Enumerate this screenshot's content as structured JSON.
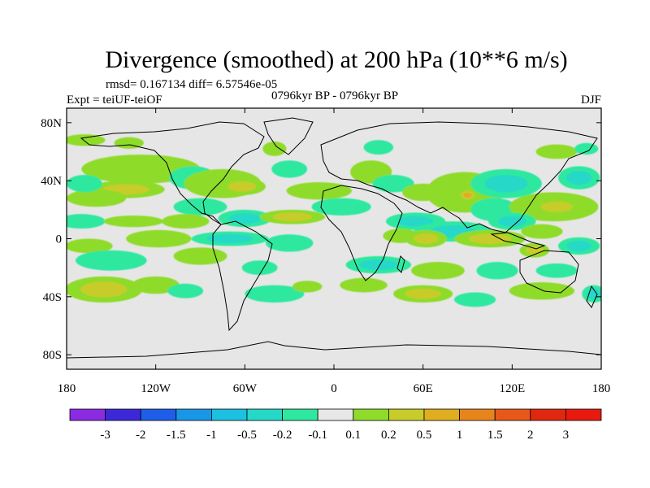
{
  "chart_data": {
    "type": "heatmap",
    "title": "Divergence (smoothed) at 200 hPa (10**6 m/s)",
    "stats": "rmsd= 0.167134  diff= 6.57546e-05",
    "experiment": "Expt = teiUF-teiOF",
    "period": "0796kyr BP - 0796kyr BP",
    "season": "DJF",
    "x_ticks": [
      "180",
      "120W",
      "60W",
      "0",
      "60E",
      "120E",
      "180"
    ],
    "x_tick_values": [
      -180,
      -120,
      -60,
      0,
      60,
      120,
      180
    ],
    "y_ticks": [
      "80N",
      "40N",
      "0",
      "40S",
      "80S"
    ],
    "y_tick_values": [
      80,
      40,
      0,
      -40,
      -80
    ],
    "xlim": [
      -180,
      180
    ],
    "ylim": [
      -90,
      90
    ],
    "colorbar": {
      "labels": [
        "-3",
        "-2",
        "-1.5",
        "-1",
        "-0.5",
        "-0.2",
        "-0.1",
        "0.1",
        "0.2",
        "0.5",
        "1",
        "1.5",
        "2",
        "3"
      ],
      "colors": [
        "#8a2be2",
        "#3c28d8",
        "#1e5ee8",
        "#1a96e6",
        "#1cc0e0",
        "#25d8c8",
        "#2ee8a0",
        "#e8e8e8",
        "#8fdb2a",
        "#c8cc2a",
        "#e0ac20",
        "#e8841c",
        "#e85818",
        "#e02810",
        "#e81a10"
      ]
    },
    "blobs": [
      {
        "lon": -168,
        "lat": 68,
        "rx": 14,
        "ry": 4,
        "v": 0.2
      },
      {
        "lon": -138,
        "lat": 66,
        "rx": 10,
        "ry": 4,
        "v": 0.2
      },
      {
        "lon": -40,
        "lat": 62,
        "rx": 8,
        "ry": 5,
        "v": 0.2
      },
      {
        "lon": 30,
        "lat": 63,
        "rx": 10,
        "ry": 5,
        "v": -0.2
      },
      {
        "lon": 150,
        "lat": 60,
        "rx": 14,
        "ry": 5,
        "v": 0.2
      },
      {
        "lon": 170,
        "lat": 62,
        "rx": 8,
        "ry": 4,
        "v": -0.2
      },
      {
        "lon": -130,
        "lat": 48,
        "rx": 40,
        "ry": 10,
        "v": 0.2
      },
      {
        "lon": -140,
        "lat": 34,
        "rx": 26,
        "ry": 6,
        "v": 0.5
      },
      {
        "lon": -160,
        "lat": 28,
        "rx": 20,
        "ry": 6,
        "v": 0.2
      },
      {
        "lon": -168,
        "lat": 38,
        "rx": 12,
        "ry": 6,
        "v": -0.2
      },
      {
        "lon": -95,
        "lat": 42,
        "rx": 16,
        "ry": 8,
        "v": -0.2
      },
      {
        "lon": -75,
        "lat": 38,
        "rx": 26,
        "ry": 10,
        "v": 0.2
      },
      {
        "lon": -62,
        "lat": 36,
        "rx": 16,
        "ry": 6,
        "v": 0.5
      },
      {
        "lon": -30,
        "lat": 48,
        "rx": 12,
        "ry": 6,
        "v": -0.2
      },
      {
        "lon": -10,
        "lat": 33,
        "rx": 22,
        "ry": 6,
        "v": 0.2
      },
      {
        "lon": 25,
        "lat": 46,
        "rx": 14,
        "ry": 8,
        "v": 0.2
      },
      {
        "lon": 40,
        "lat": 38,
        "rx": 14,
        "ry": 6,
        "v": -0.2
      },
      {
        "lon": 60,
        "lat": 32,
        "rx": 14,
        "ry": 6,
        "v": 0.2
      },
      {
        "lon": 88,
        "lat": 32,
        "rx": 26,
        "ry": 14,
        "v": 0.2
      },
      {
        "lon": 90,
        "lat": 30,
        "rx": 8,
        "ry": 5,
        "v": 1
      },
      {
        "lon": 116,
        "lat": 38,
        "rx": 24,
        "ry": 10,
        "v": -0.5
      },
      {
        "lon": 108,
        "lat": 20,
        "rx": 16,
        "ry": 8,
        "v": -0.2
      },
      {
        "lon": 148,
        "lat": 22,
        "rx": 30,
        "ry": 10,
        "v": 0.2
      },
      {
        "lon": 150,
        "lat": 22,
        "rx": 18,
        "ry": 6,
        "v": 0.5
      },
      {
        "lon": 165,
        "lat": 42,
        "rx": 14,
        "ry": 8,
        "v": -0.5
      },
      {
        "lon": -170,
        "lat": 12,
        "rx": 16,
        "ry": 5,
        "v": -0.2
      },
      {
        "lon": -135,
        "lat": 12,
        "rx": 20,
        "ry": 4,
        "v": 0.2
      },
      {
        "lon": -90,
        "lat": 22,
        "rx": 18,
        "ry": 6,
        "v": -0.2
      },
      {
        "lon": -100,
        "lat": 12,
        "rx": 16,
        "ry": 5,
        "v": 0.2
      },
      {
        "lon": -60,
        "lat": 14,
        "rx": 18,
        "ry": 6,
        "v": -0.5
      },
      {
        "lon": -28,
        "lat": 15,
        "rx": 22,
        "ry": 5,
        "v": 0.5
      },
      {
        "lon": 5,
        "lat": 22,
        "rx": 20,
        "ry": 6,
        "v": -0.2
      },
      {
        "lon": 55,
        "lat": 12,
        "rx": 20,
        "ry": 6,
        "v": -0.5
      },
      {
        "lon": 80,
        "lat": 5,
        "rx": 26,
        "ry": 7,
        "v": -0.5
      },
      {
        "lon": 120,
        "lat": 12,
        "rx": 16,
        "ry": 6,
        "v": -0.5
      },
      {
        "lon": 140,
        "lat": 5,
        "rx": 14,
        "ry": 5,
        "v": 0.2
      },
      {
        "lon": -165,
        "lat": -5,
        "rx": 16,
        "ry": 5,
        "v": 0.2
      },
      {
        "lon": -118,
        "lat": 0,
        "rx": 22,
        "ry": 6,
        "v": 0.2
      },
      {
        "lon": -70,
        "lat": 0,
        "rx": 26,
        "ry": 5,
        "v": -0.5
      },
      {
        "lon": -30,
        "lat": -3,
        "rx": 16,
        "ry": 6,
        "v": -0.2
      },
      {
        "lon": 45,
        "lat": 2,
        "rx": 12,
        "ry": 5,
        "v": 0.2
      },
      {
        "lon": 62,
        "lat": 0,
        "rx": 14,
        "ry": 6,
        "v": 0.5
      },
      {
        "lon": 105,
        "lat": 0,
        "rx": 24,
        "ry": 6,
        "v": 0.5
      },
      {
        "lon": 135,
        "lat": -8,
        "rx": 10,
        "ry": 5,
        "v": 0.5
      },
      {
        "lon": 165,
        "lat": -5,
        "rx": 14,
        "ry": 6,
        "v": -0.5
      },
      {
        "lon": -150,
        "lat": -15,
        "rx": 24,
        "ry": 7,
        "v": -0.2
      },
      {
        "lon": -90,
        "lat": -12,
        "rx": 18,
        "ry": 6,
        "v": 0.2
      },
      {
        "lon": -50,
        "lat": -20,
        "rx": 12,
        "ry": 5,
        "v": -0.2
      },
      {
        "lon": 30,
        "lat": -18,
        "rx": 22,
        "ry": 6,
        "v": -0.5
      },
      {
        "lon": 70,
        "lat": -22,
        "rx": 18,
        "ry": 6,
        "v": 0.2
      },
      {
        "lon": 110,
        "lat": -22,
        "rx": 14,
        "ry": 6,
        "v": -0.2
      },
      {
        "lon": 150,
        "lat": -22,
        "rx": 14,
        "ry": 5,
        "v": -0.2
      },
      {
        "lon": -155,
        "lat": -35,
        "rx": 26,
        "ry": 9,
        "v": 0.5
      },
      {
        "lon": -120,
        "lat": -32,
        "rx": 16,
        "ry": 6,
        "v": 0.2
      },
      {
        "lon": -100,
        "lat": -36,
        "rx": 12,
        "ry": 5,
        "v": -0.2
      },
      {
        "lon": -40,
        "lat": -38,
        "rx": 20,
        "ry": 6,
        "v": -0.2
      },
      {
        "lon": -18,
        "lat": -33,
        "rx": 10,
        "ry": 4,
        "v": 0.2
      },
      {
        "lon": 20,
        "lat": -32,
        "rx": 16,
        "ry": 5,
        "v": 0.2
      },
      {
        "lon": 60,
        "lat": -38,
        "rx": 20,
        "ry": 6,
        "v": 0.5
      },
      {
        "lon": 140,
        "lat": -36,
        "rx": 22,
        "ry": 6,
        "v": 0.2
      },
      {
        "lon": 175,
        "lat": -38,
        "rx": 8,
        "ry": 6,
        "v": -0.5
      },
      {
        "lon": 95,
        "lat": -42,
        "rx": 14,
        "ry": 5,
        "v": -0.2
      }
    ]
  }
}
